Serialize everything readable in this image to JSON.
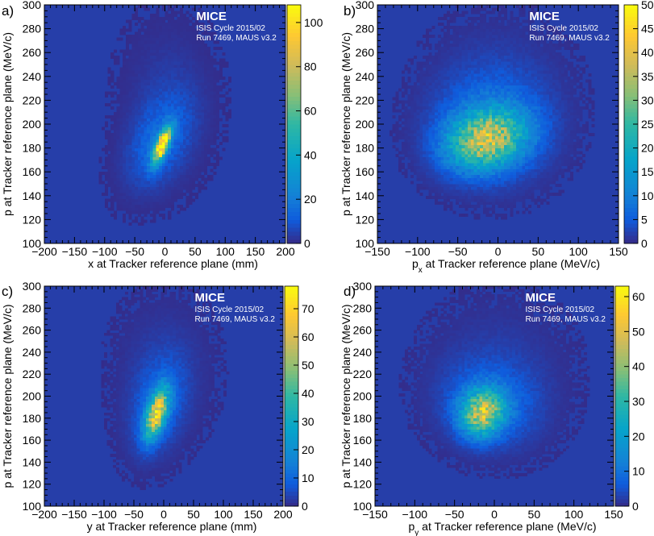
{
  "figure": {
    "annotation_title": "MICE",
    "annotation_line1": "ISIS Cycle 2015/02",
    "annotation_line2": "Run 7469, MAUS v3.2"
  },
  "chart_data": [
    {
      "panel": "a)",
      "type": "heatmap",
      "xlabel": "x at Tracker reference plane (mm)",
      "ylabel": "p at Tracker reference plane (MeV/c)",
      "xlim": [
        -200,
        200
      ],
      "ylim": [
        100,
        300
      ],
      "xticks": [
        -200,
        -150,
        -100,
        -50,
        0,
        50,
        100,
        150,
        200
      ],
      "yticks": [
        100,
        120,
        140,
        160,
        180,
        200,
        220,
        240,
        260,
        280,
        300
      ],
      "zlim": [
        0,
        108
      ],
      "zticks": [
        0,
        20,
        40,
        60,
        80,
        100
      ],
      "peak": {
        "x": -5,
        "y": 180,
        "z": 105
      },
      "blobs": [
        {
          "cx": -5,
          "cy": 182,
          "sx": 10,
          "sy": 10,
          "rho": 0.7,
          "amp": 105
        },
        {
          "cx": -10,
          "cy": 185,
          "sx": 35,
          "sy": 25,
          "rho": 0.4,
          "amp": 14
        },
        {
          "cx": 5,
          "cy": 220,
          "sx": 45,
          "sy": 40,
          "rho": 0.0,
          "amp": 4
        }
      ]
    },
    {
      "panel": "b)",
      "type": "heatmap",
      "xlabel": "p_x at Tracker reference plane (MeV/c)",
      "ylabel": "p at Tracker reference plane (MeV/c)",
      "xlim": [
        -150,
        150
      ],
      "ylim": [
        100,
        300
      ],
      "xticks": [
        -150,
        -100,
        -50,
        0,
        50,
        100,
        150
      ],
      "yticks": [
        100,
        120,
        140,
        160,
        180,
        200,
        220,
        240,
        260,
        280,
        300
      ],
      "zlim": [
        0,
        50
      ],
      "zticks": [
        0,
        5,
        10,
        15,
        20,
        25,
        30,
        35,
        40,
        45,
        50
      ],
      "peak": {
        "x": -15,
        "y": 185,
        "z": 47
      },
      "blobs": [
        {
          "cx": -15,
          "cy": 187,
          "sx": 32,
          "sy": 16,
          "rho": 0.2,
          "amp": 30
        },
        {
          "cx": -10,
          "cy": 195,
          "sx": 45,
          "sy": 28,
          "rho": 0.0,
          "amp": 8
        },
        {
          "cx": 0,
          "cy": 225,
          "sx": 55,
          "sy": 40,
          "rho": 0.0,
          "amp": 2.5
        }
      ]
    },
    {
      "panel": "c)",
      "type": "heatmap",
      "xlabel": "y at Tracker reference plane (mm)",
      "ylabel": "p at Tracker reference plane (MeV/c)",
      "xlim": [
        -200,
        200
      ],
      "ylim": [
        100,
        300
      ],
      "xticks": [
        -200,
        -150,
        -100,
        -50,
        0,
        50,
        100,
        150,
        200
      ],
      "yticks": [
        100,
        120,
        140,
        160,
        180,
        200,
        220,
        240,
        260,
        280,
        300
      ],
      "zlim": [
        0,
        78
      ],
      "zticks": [
        0,
        10,
        20,
        30,
        40,
        50,
        60,
        70
      ],
      "peak": {
        "x": -10,
        "y": 185,
        "z": 75
      },
      "blobs": [
        {
          "cx": -12,
          "cy": 184,
          "sx": 13,
          "sy": 15,
          "rho": 0.55,
          "amp": 60
        },
        {
          "cx": -10,
          "cy": 190,
          "sx": 30,
          "sy": 28,
          "rho": 0.3,
          "amp": 10
        },
        {
          "cx": 0,
          "cy": 225,
          "sx": 50,
          "sy": 40,
          "rho": 0.0,
          "amp": 3
        }
      ]
    },
    {
      "panel": "d)",
      "type": "heatmap",
      "xlabel": "p_y at Tracker reference plane (MeV/c)",
      "ylabel": "p at Tracker reference plane (MeV/c)",
      "xlim": [
        -150,
        150
      ],
      "ylim": [
        100,
        300
      ],
      "xticks": [
        -150,
        -100,
        -50,
        0,
        50,
        100,
        150
      ],
      "yticks": [
        100,
        120,
        140,
        160,
        180,
        200,
        220,
        240,
        260,
        280,
        300
      ],
      "zlim": [
        0,
        63
      ],
      "zticks": [
        0,
        10,
        20,
        30,
        40,
        50,
        60
      ],
      "peak": {
        "x": -15,
        "y": 185,
        "z": 58
      },
      "blobs": [
        {
          "cx": -15,
          "cy": 185,
          "sx": 18,
          "sy": 14,
          "rho": 0.1,
          "amp": 40
        },
        {
          "cx": -5,
          "cy": 192,
          "sx": 40,
          "sy": 25,
          "rho": -0.1,
          "amp": 8
        },
        {
          "cx": 5,
          "cy": 225,
          "sx": 55,
          "sy": 40,
          "rho": 0.0,
          "amp": 2.5
        }
      ]
    }
  ]
}
